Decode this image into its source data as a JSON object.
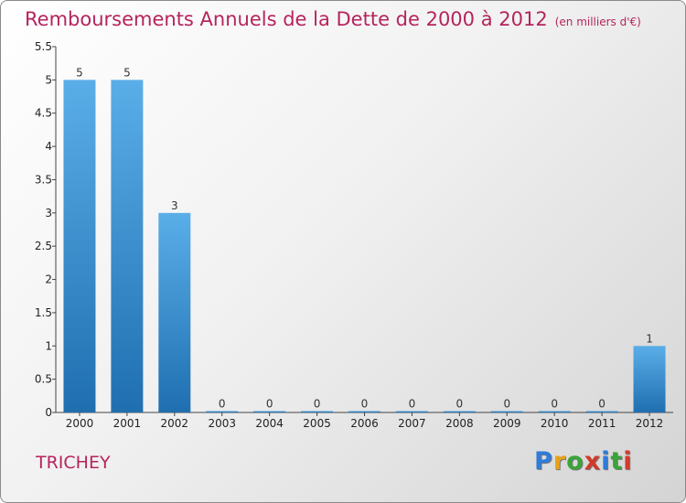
{
  "title": "Remboursements Annuels de la Dette de 2000 à 2012",
  "unit_note": "(en milliers d'€)",
  "town": "TRICHEY",
  "logo": {
    "text": "Proxiti",
    "letters": [
      "P",
      "r",
      "o",
      "x",
      "i",
      "t",
      "i"
    ]
  },
  "colors": {
    "title": "#b5245d",
    "bar_top": "#5aaee8",
    "bar_bottom": "#1f6fb0",
    "logo": [
      "#2f7bd8",
      "#e8a21a",
      "#3aa33a",
      "#d23a2a",
      "#2f7bd8",
      "#3aa33a",
      "#d23a2a"
    ]
  },
  "chart_data": {
    "type": "bar",
    "title": "Remboursements Annuels de la Dette de 2000 à 2012",
    "xlabel": "",
    "ylabel": "",
    "categories": [
      "2000",
      "2001",
      "2002",
      "2003",
      "2004",
      "2005",
      "2006",
      "2007",
      "2008",
      "2009",
      "2010",
      "2011",
      "2012"
    ],
    "values": [
      5,
      5,
      3,
      0,
      0,
      0,
      0,
      0,
      0,
      0,
      0,
      0,
      1
    ],
    "data_labels": [
      "5",
      "5",
      "3",
      "0",
      "0",
      "0",
      "0",
      "0",
      "0",
      "0",
      "0",
      "0",
      "1"
    ],
    "ylim": [
      0,
      5.5
    ],
    "yticks": [
      0,
      0.5,
      1,
      1.5,
      2,
      2.5,
      3,
      3.5,
      4,
      4.5,
      5,
      5.5
    ],
    "ytick_labels": [
      "0",
      "0.5",
      "1",
      "1.5",
      "2",
      "2.5",
      "3",
      "3.5",
      "4",
      "4.5",
      "5",
      "5.5"
    ],
    "grid": false,
    "legend": "none"
  }
}
